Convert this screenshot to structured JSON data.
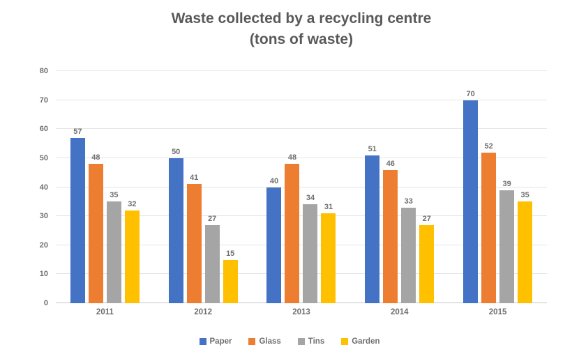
{
  "chart_data": {
    "type": "bar",
    "title_line1": "Waste collected by a recycling centre",
    "title_line2": "(tons of waste)",
    "categories": [
      "2011",
      "2012",
      "2013",
      "2014",
      "2015"
    ],
    "series": [
      {
        "name": "Paper",
        "color": "#4472C4",
        "values": [
          57,
          50,
          40,
          51,
          70
        ]
      },
      {
        "name": "Glass",
        "color": "#ED7D31",
        "values": [
          48,
          41,
          48,
          46,
          52
        ]
      },
      {
        "name": "Tins",
        "color": "#A5A5A5",
        "values": [
          35,
          27,
          34,
          33,
          39
        ]
      },
      {
        "name": "Garden",
        "color": "#FFC000",
        "values": [
          32,
          15,
          31,
          27,
          35
        ]
      }
    ],
    "xlabel": "",
    "ylabel": "",
    "ylim": [
      0,
      80
    ],
    "yticks": [
      0,
      10,
      20,
      30,
      40,
      50,
      60,
      70,
      80
    ],
    "grid": true,
    "value_labels": true,
    "legend_position": "bottom"
  },
  "colors": {
    "title_text": "#595959",
    "axis_text": "#6e6e6e",
    "gridline": "#e4e4e4",
    "axis_line": "#c6c6c6",
    "background": "#ffffff"
  }
}
